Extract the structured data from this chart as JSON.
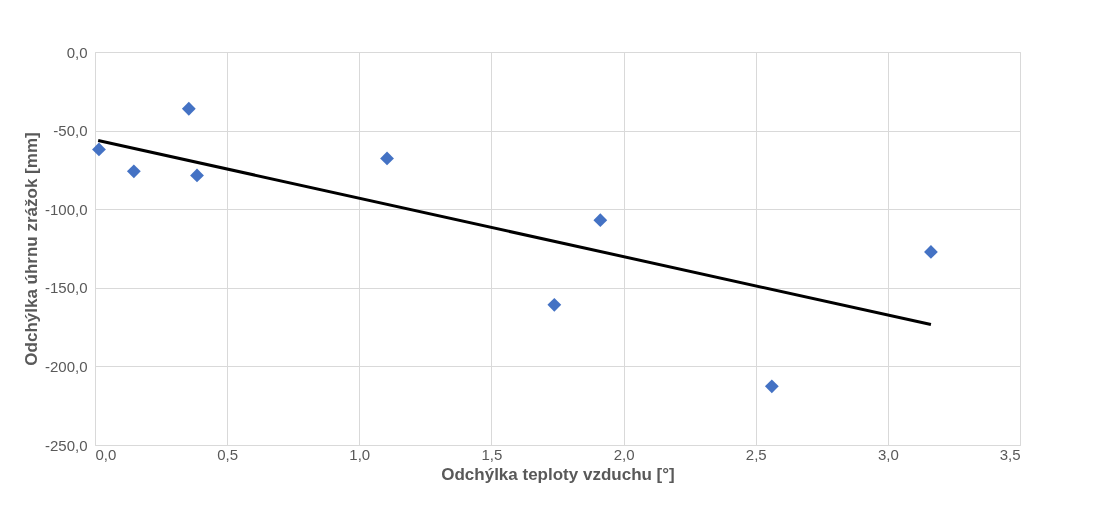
{
  "chart_data": {
    "type": "scatter",
    "xlabel": "Odchýlka teploty vzduchu [°]",
    "ylabel": "Odchýlka úhrnu zrážok [mm]",
    "x": [
      0.015,
      0.147,
      0.355,
      0.386,
      1.105,
      1.738,
      1.912,
      2.561,
      3.163
    ],
    "series": [
      {
        "color": "#4472c4",
        "marker": "diamond",
        "values": [
          -62.0,
          -75.9,
          -36.1,
          -78.5,
          -67.7,
          -160.8,
          -107.0,
          -212.7,
          -127.2
        ]
      },
      {
        "type": "line",
        "color": "#000000",
        "x": [
          0.012,
          3.163
        ],
        "values": [
          -56.3,
          -173.4
        ]
      }
    ],
    "xlim": [
      0,
      3.5
    ],
    "ylim": [
      -250,
      0
    ],
    "xticks": [
      {
        "value": 0,
        "label": "0,0"
      },
      {
        "value": 0.5,
        "label": "0,5"
      },
      {
        "value": 1,
        "label": "1,0"
      },
      {
        "value": 1.5,
        "label": "1,5"
      },
      {
        "value": 2,
        "label": "2,0"
      },
      {
        "value": 2.5,
        "label": "2,5"
      },
      {
        "value": 3,
        "label": "3,0"
      },
      {
        "value": 3.5,
        "label": "3,5"
      }
    ],
    "yticks": [
      {
        "value": -250,
        "label": "-250,0"
      },
      {
        "value": -200,
        "label": "-200,0"
      },
      {
        "value": -150,
        "label": "-150,0"
      },
      {
        "value": -100,
        "label": "-100,0"
      },
      {
        "value": -50,
        "label": "-50,0"
      },
      {
        "value": 0,
        "label": "0,0"
      }
    ],
    "grid": true
  }
}
